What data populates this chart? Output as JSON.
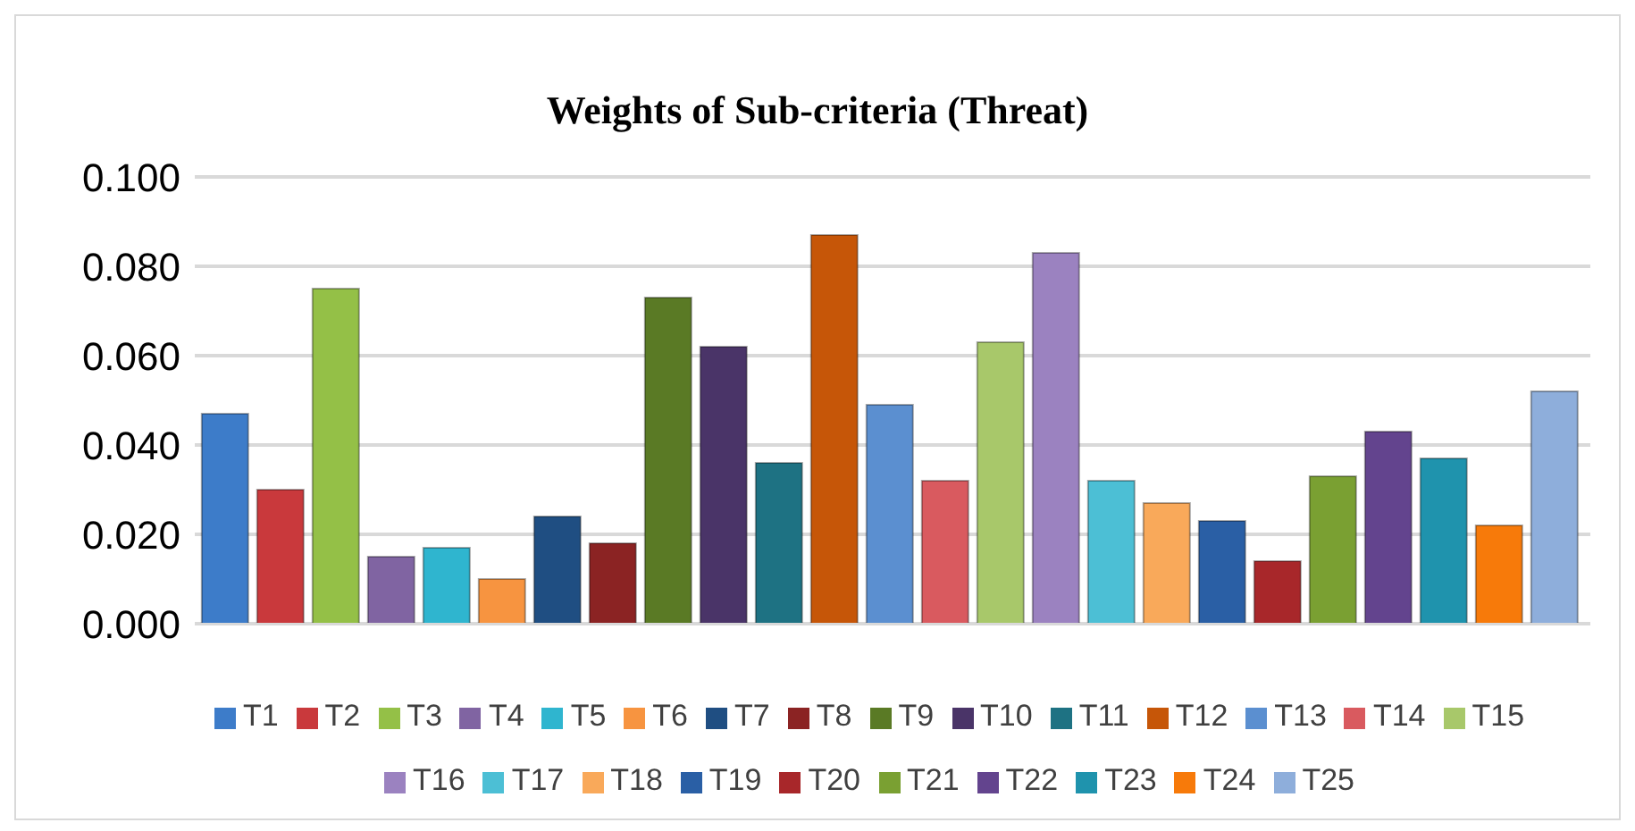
{
  "chart_data": {
    "type": "bar",
    "title": "Weights of Sub-criteria (Threat)",
    "categories": [
      null
    ],
    "series": [
      {
        "name": "T1",
        "color": "#3d7cc9",
        "values": [
          0.047
        ]
      },
      {
        "name": "T2",
        "color": "#c9393c",
        "values": [
          0.03
        ]
      },
      {
        "name": "T3",
        "color": "#94c047",
        "values": [
          0.075
        ]
      },
      {
        "name": "T4",
        "color": "#8064a2",
        "values": [
          0.015
        ]
      },
      {
        "name": "T5",
        "color": "#2fb5cf",
        "values": [
          0.017
        ]
      },
      {
        "name": "T6",
        "color": "#f79440",
        "values": [
          0.01
        ]
      },
      {
        "name": "T7",
        "color": "#1f4e82",
        "values": [
          0.024
        ]
      },
      {
        "name": "T8",
        "color": "#8b2323",
        "values": [
          0.018
        ]
      },
      {
        "name": "T9",
        "color": "#5a7a25",
        "values": [
          0.073
        ]
      },
      {
        "name": "T10",
        "color": "#4a3468",
        "values": [
          0.062
        ]
      },
      {
        "name": "T11",
        "color": "#1e7283",
        "values": [
          0.036
        ]
      },
      {
        "name": "T12",
        "color": "#c65608",
        "values": [
          0.087
        ]
      },
      {
        "name": "T13",
        "color": "#5b8fd0",
        "values": [
          0.049
        ]
      },
      {
        "name": "T14",
        "color": "#d95a5f",
        "values": [
          0.032
        ]
      },
      {
        "name": "T15",
        "color": "#a8c86a",
        "values": [
          0.063
        ]
      },
      {
        "name": "T16",
        "color": "#9b82c0",
        "values": [
          0.083
        ]
      },
      {
        "name": "T17",
        "color": "#4cbfd5",
        "values": [
          0.032
        ]
      },
      {
        "name": "T18",
        "color": "#f9a95a",
        "values": [
          0.027
        ]
      },
      {
        "name": "T19",
        "color": "#2a5fa5",
        "values": [
          0.023
        ]
      },
      {
        "name": "T20",
        "color": "#a8272a",
        "values": [
          0.014
        ]
      },
      {
        "name": "T21",
        "color": "#7aa032",
        "values": [
          0.033
        ]
      },
      {
        "name": "T22",
        "color": "#63448e",
        "values": [
          0.043
        ]
      },
      {
        "name": "T23",
        "color": "#1f93ad",
        "values": [
          0.037
        ]
      },
      {
        "name": "T24",
        "color": "#f77a0a",
        "values": [
          0.022
        ]
      },
      {
        "name": "T25",
        "color": "#8eaedb",
        "values": [
          0.052
        ]
      }
    ],
    "ylim": [
      0,
      0.1
    ],
    "yticks": [
      {
        "value": 0,
        "label": "0.000"
      },
      {
        "value": 0.02,
        "label": "0.020"
      },
      {
        "value": 0.04,
        "label": "0.040"
      },
      {
        "value": 0.06,
        "label": "0.060"
      },
      {
        "value": 0.08,
        "label": "0.080"
      },
      {
        "value": 0.1,
        "label": "0.100"
      }
    ],
    "grid": "y",
    "legend": "bottom"
  }
}
